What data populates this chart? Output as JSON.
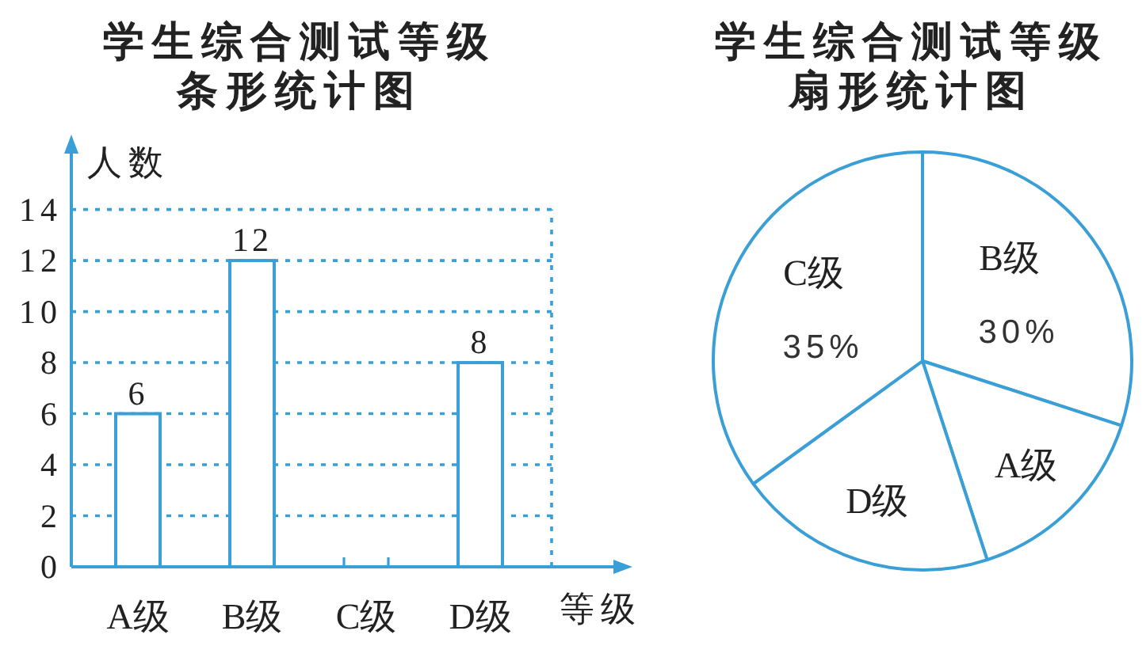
{
  "chart_data": [
    {
      "type": "bar",
      "title": "学生综合测试等级条形统计图",
      "xlabel": "等级",
      "ylabel": "人数",
      "categories": [
        "A级",
        "B级",
        "C级",
        "D级"
      ],
      "values": [
        6,
        12,
        null,
        8
      ],
      "color": "#ffffff",
      "ylim": [
        0,
        16.5
      ],
      "yticks": [
        0,
        2,
        4,
        6,
        8,
        10,
        12,
        14
      ],
      "grid": "y",
      "data_labels": true
    },
    {
      "type": "pie",
      "title": "学生综合测试等级扇形统计图",
      "categories": [
        "B级",
        "A级",
        "D级",
        "C级"
      ],
      "values": [
        30,
        15,
        20,
        35
      ],
      "colors": [
        "#ffffff",
        "#ffffff",
        "#ffffff",
        "#ffffff"
      ],
      "value_labels": [
        "30%",
        null,
        null,
        "35%"
      ]
    }
  ]
}
